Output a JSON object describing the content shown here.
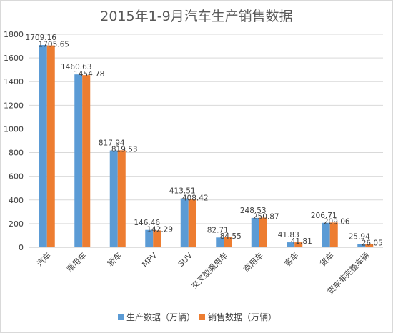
{
  "chart_data": {
    "type": "bar",
    "title": "2015年1-9月汽车生产销售数据",
    "categories": [
      "汽车",
      "乘用车",
      "轿车",
      "MPV",
      "SUV",
      "交叉型乘用车",
      "商用车",
      "客车",
      "货车",
      "货车非完整车辆"
    ],
    "series": [
      {
        "name": "生产数据（万辆）",
        "color": "#5b9bd5",
        "values": [
          1709.16,
          1460.63,
          817.94,
          146.46,
          413.51,
          82.71,
          248.53,
          41.83,
          206.71,
          25.94
        ]
      },
      {
        "name": "销售数据（万辆）",
        "color": "#ed7d31",
        "values": [
          1705.65,
          1454.78,
          819.53,
          142.29,
          408.42,
          84.55,
          250.87,
          41.81,
          209.06,
          26.05
        ]
      }
    ],
    "y_ticks": [
      "0",
      "200",
      "400",
      "600",
      "800",
      "1000",
      "1200",
      "1400",
      "1600",
      "1800"
    ],
    "ylim": [
      0,
      1800
    ],
    "grid": true,
    "legend_position": "bottom-center",
    "data_labels": true
  }
}
